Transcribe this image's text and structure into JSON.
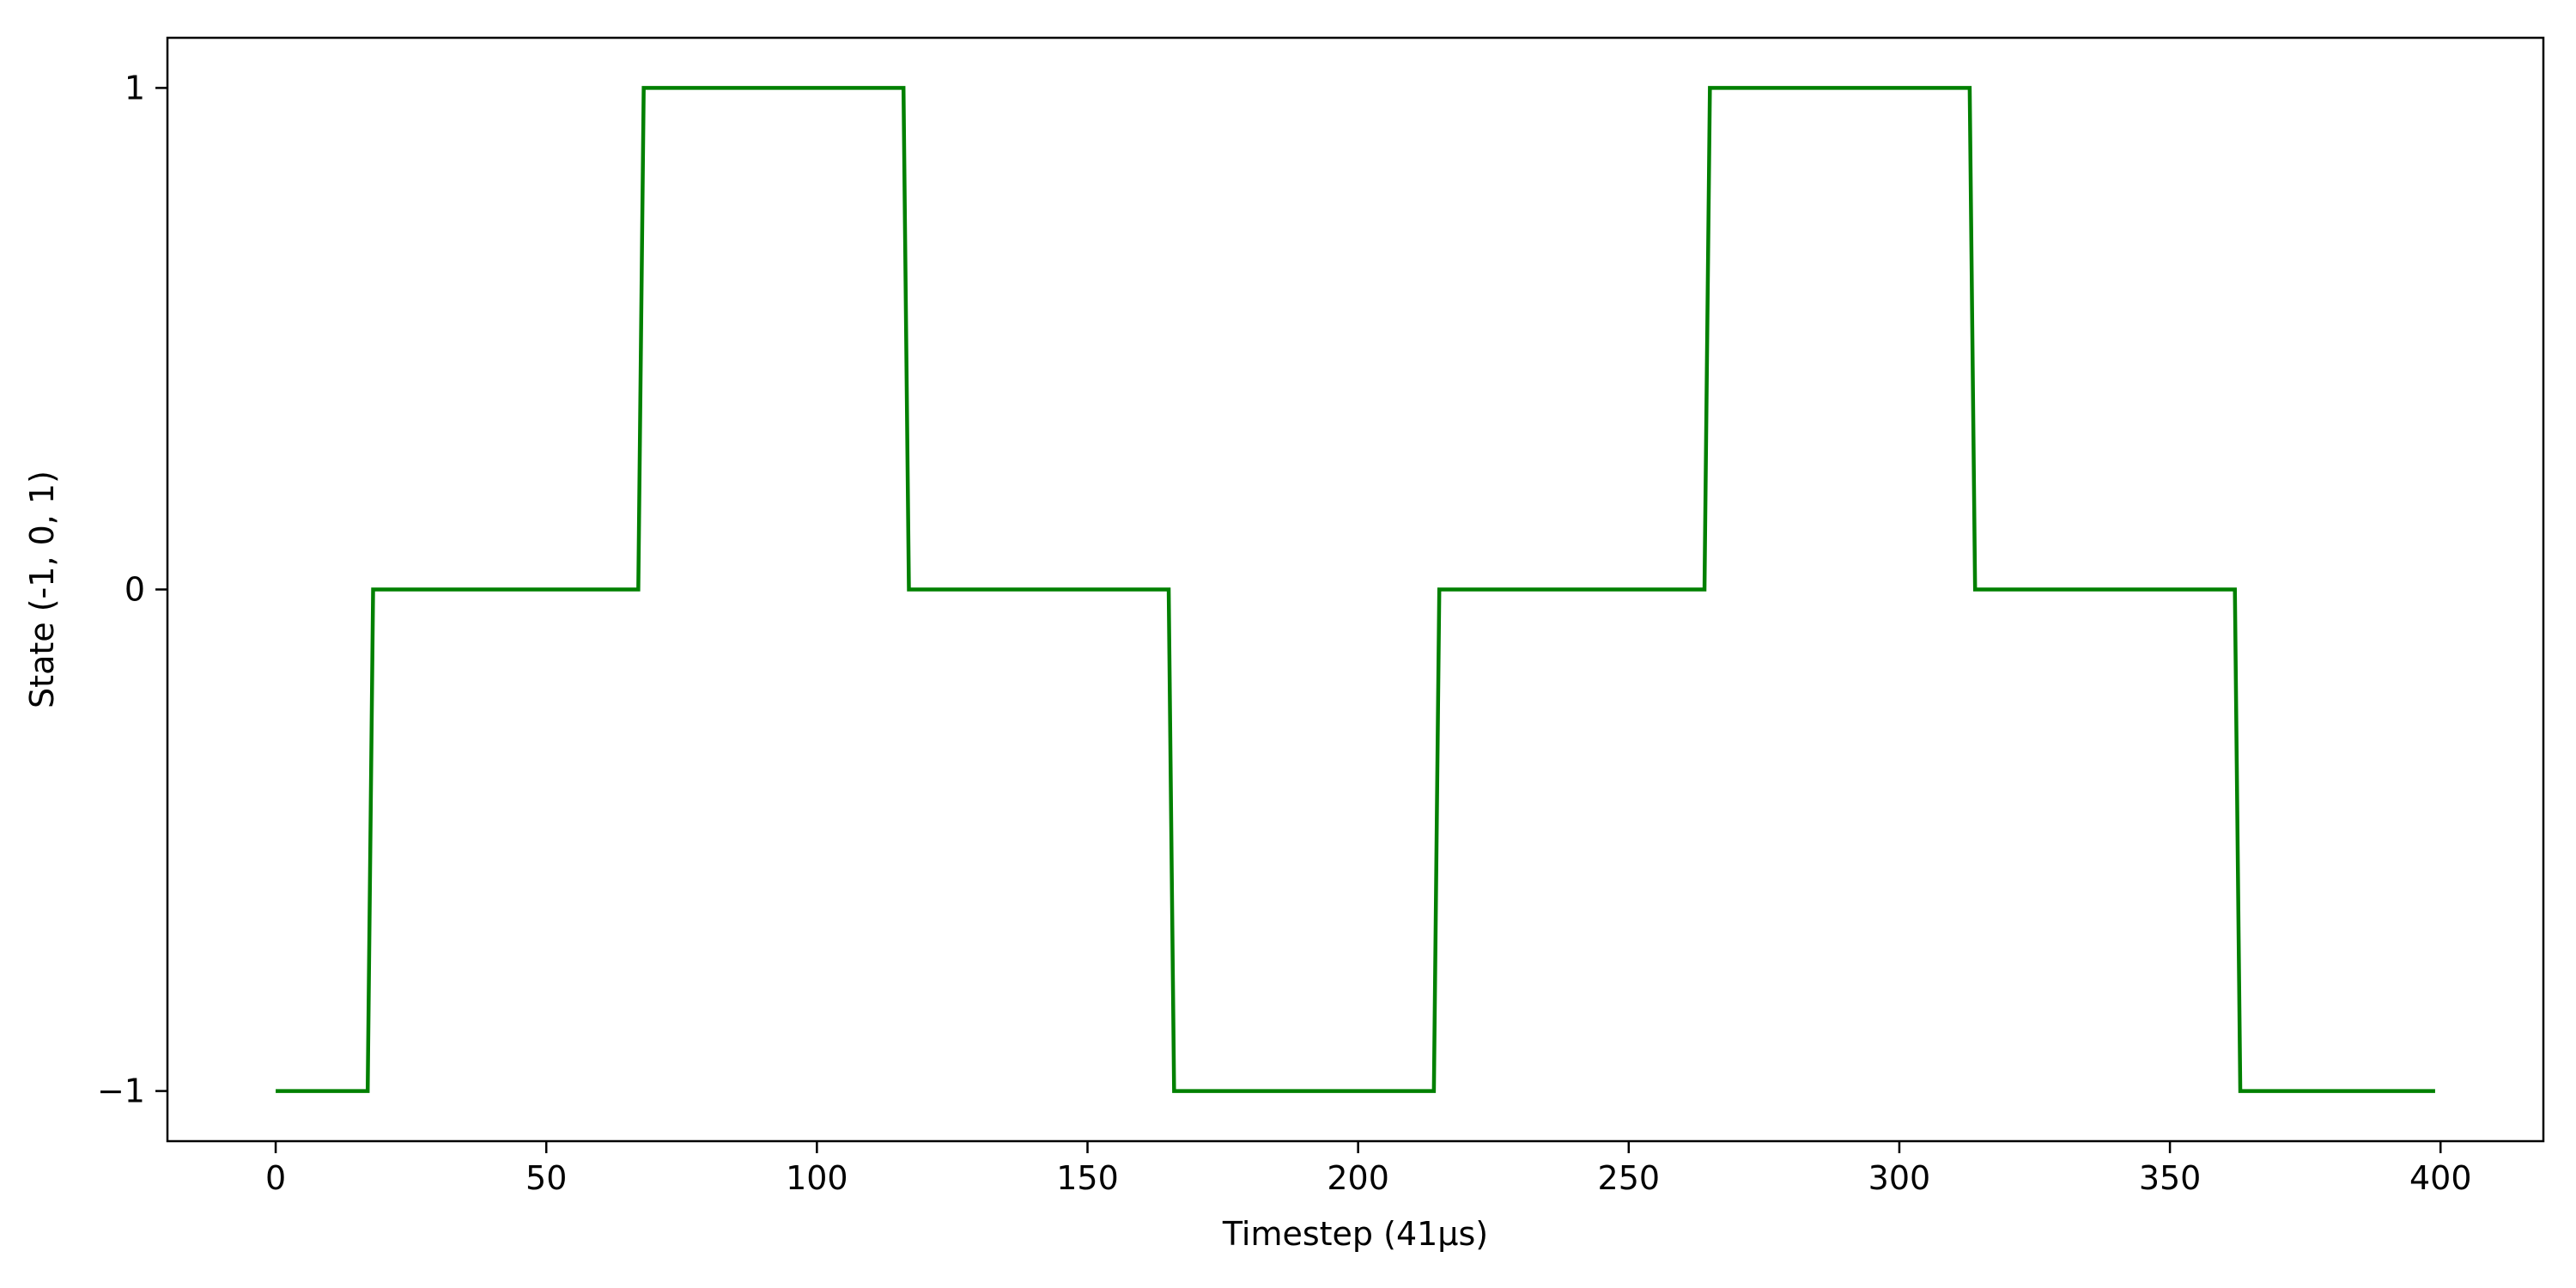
{
  "chart_data": {
    "type": "line",
    "title": "",
    "xlabel": "Timestep (41µs)",
    "ylabel": "State (-1, 0, 1)",
    "xlim": [
      -20,
      419
    ],
    "ylim": [
      -1.1,
      1.1
    ],
    "xticks": [
      0,
      50,
      100,
      150,
      200,
      250,
      300,
      350,
      400
    ],
    "yticks": [
      -1,
      0,
      1
    ],
    "xtick_labels": [
      "0",
      "50",
      "100",
      "150",
      "200",
      "250",
      "300",
      "350",
      "400"
    ],
    "ytick_labels": [
      "−1",
      "0",
      "1"
    ],
    "grid": false,
    "legend": "none",
    "series": [
      {
        "color": "#008000",
        "x": [
          0,
          17,
          18,
          67,
          68,
          116,
          117,
          165,
          166,
          214,
          215,
          264,
          265,
          313,
          314,
          362,
          363,
          399
        ],
        "y": [
          -1,
          -1,
          0,
          0,
          1,
          1,
          0,
          0,
          -1,
          -1,
          0,
          0,
          1,
          1,
          0,
          0,
          -1,
          -1
        ]
      }
    ]
  }
}
